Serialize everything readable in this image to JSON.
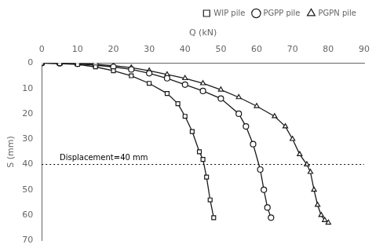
{
  "chart_data": {
    "type": "line",
    "xlabel": "Q (kN)",
    "ylabel": "S (mm)",
    "xlim": [
      0,
      90
    ],
    "ylim": [
      70,
      0
    ],
    "xticks": [
      0,
      10,
      20,
      30,
      40,
      50,
      60,
      70,
      80,
      90
    ],
    "yticks": [
      0,
      10,
      20,
      30,
      40,
      50,
      60,
      70
    ],
    "grid": false,
    "legend": "upper right",
    "hline": 40,
    "annotations": [
      {
        "text": "Displacement=40 mm",
        "x": 5,
        "y": 40
      }
    ],
    "series": [
      {
        "name": "WIP pile",
        "marker": "square",
        "color": "#1a1a1a",
        "x": [
          0,
          5,
          10,
          15,
          20,
          25,
          30,
          35,
          38,
          40,
          42,
          44,
          45,
          46,
          47,
          48
        ],
        "values": [
          0,
          0.2,
          0.5,
          1.5,
          3,
          5,
          8,
          12,
          16,
          21,
          27,
          35,
          38,
          45,
          54,
          61
        ]
      },
      {
        "name": "PGPP pile",
        "marker": "circle",
        "color": "#1a1a1a",
        "x": [
          0,
          5,
          10,
          15,
          20,
          25,
          30,
          35,
          40,
          45,
          50,
          55,
          57,
          59,
          61,
          62,
          63,
          64
        ],
        "values": [
          0,
          0.1,
          0.3,
          0.8,
          1.5,
          2.5,
          4,
          6,
          8.5,
          11,
          14,
          20,
          25,
          32,
          42,
          50,
          57,
          61
        ]
      },
      {
        "name": "PGPN pile",
        "marker": "triangle",
        "color": "#1a1a1a",
        "x": [
          0,
          5,
          10,
          15,
          20,
          25,
          30,
          35,
          40,
          45,
          50,
          55,
          60,
          65,
          68,
          70,
          72,
          74,
          75,
          76,
          77,
          78,
          79,
          80
        ],
        "values": [
          0,
          0.1,
          0.2,
          0.5,
          1,
          1.8,
          3,
          4.5,
          6,
          8,
          10.5,
          13.5,
          17,
          21,
          25,
          30,
          36,
          40,
          43,
          50,
          56,
          60,
          62,
          63
        ]
      }
    ]
  }
}
